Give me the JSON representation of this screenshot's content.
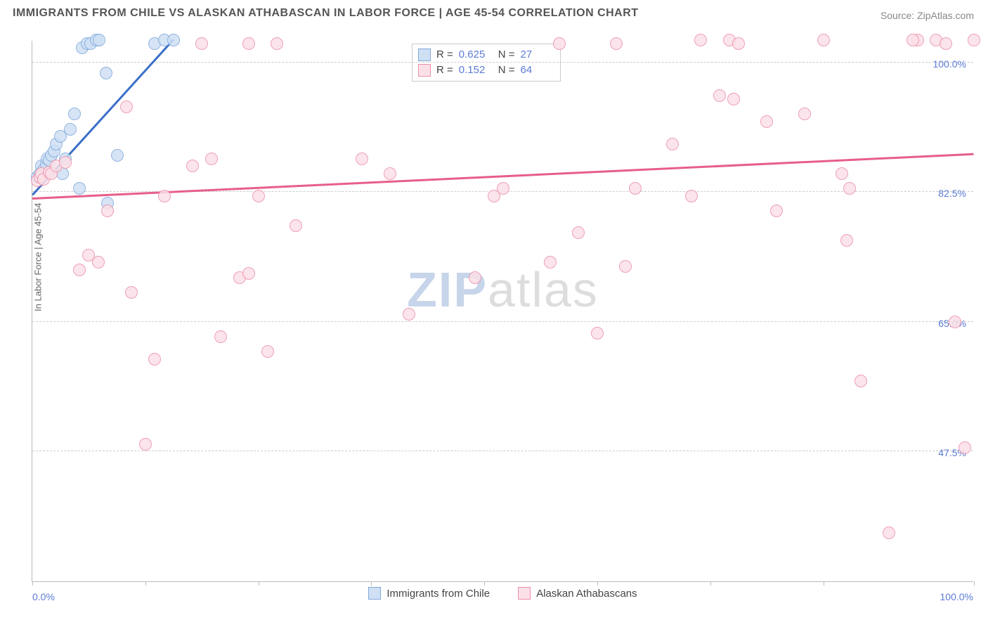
{
  "title": "IMMIGRANTS FROM CHILE VS ALASKAN ATHABASCAN IN LABOR FORCE | AGE 45-54 CORRELATION CHART",
  "source_label": "Source: ZipAtlas.com",
  "y_axis_label": "In Labor Force | Age 45-54",
  "watermark": {
    "zip": "ZIP",
    "atlas": "atlas",
    "zip_color": "#c7d5ea",
    "atlas_color": "#dddddd"
  },
  "plot": {
    "x_domain": [
      0,
      100
    ],
    "y_domain": [
      30,
      103
    ],
    "y_gridlines": [
      47.5,
      65.0,
      82.5,
      100.0
    ],
    "y_tick_labels": [
      "47.5%",
      "65.0%",
      "82.5%",
      "100.0%"
    ],
    "x_ticks": [
      0,
      12,
      24,
      36,
      48,
      60,
      72,
      84,
      100
    ],
    "x_tick_labels": {
      "left": "0.0%",
      "right": "100.0%"
    },
    "grid_color": "#cccccc",
    "axis_color": "#bbbbbb",
    "tick_label_color": "#5b7bd5"
  },
  "series": [
    {
      "name": "Immigrants from Chile",
      "short": "blue",
      "r": 0.625,
      "n": 27,
      "marker_fill": "#cfe0f5",
      "marker_stroke": "#7fa8d9",
      "marker_radius": 9,
      "line_color": "#3b6fc9",
      "trend": {
        "x1": 0,
        "y1": 82,
        "x2": 15,
        "y2": 103
      },
      "points": [
        [
          0.5,
          84.5
        ],
        [
          0.8,
          85
        ],
        [
          1.0,
          86
        ],
        [
          1.2,
          85.5
        ],
        [
          1.5,
          86.2
        ],
        [
          1.6,
          87
        ],
        [
          1.8,
          86.8
        ],
        [
          2.0,
          87.5
        ],
        [
          2.3,
          88
        ],
        [
          2.5,
          89
        ],
        [
          3.0,
          90
        ],
        [
          3.2,
          85
        ],
        [
          3.5,
          87
        ],
        [
          4.0,
          91
        ],
        [
          4.5,
          93
        ],
        [
          5.0,
          83
        ],
        [
          5.3,
          102
        ],
        [
          5.8,
          102.5
        ],
        [
          6.2,
          102.5
        ],
        [
          6.8,
          103
        ],
        [
          7.1,
          103
        ],
        [
          7.8,
          98.5
        ],
        [
          8.0,
          81
        ],
        [
          13.0,
          102.5
        ],
        [
          14.0,
          103
        ],
        [
          15.0,
          103
        ],
        [
          9.0,
          87.5
        ]
      ]
    },
    {
      "name": "Alaskan Athabascans",
      "short": "pink",
      "r": 0.152,
      "n": 64,
      "marker_fill": "#fbe0e8",
      "marker_stroke": "#ec8fa8",
      "marker_radius": 9,
      "line_color": "#e75e8a",
      "trend": {
        "x1": 0,
        "y1": 81.5,
        "x2": 100,
        "y2": 87.5
      },
      "points": [
        [
          0.5,
          84
        ],
        [
          0.8,
          84.5
        ],
        [
          1.0,
          85
        ],
        [
          1.2,
          84.2
        ],
        [
          1.8,
          85.2
        ],
        [
          2.0,
          85
        ],
        [
          2.5,
          86
        ],
        [
          3.5,
          86.5
        ],
        [
          5,
          72
        ],
        [
          6,
          74
        ],
        [
          7,
          73
        ],
        [
          8,
          80
        ],
        [
          10,
          94
        ],
        [
          12,
          48.5
        ],
        [
          14,
          82
        ],
        [
          13,
          60
        ],
        [
          10.5,
          69
        ],
        [
          17,
          86
        ],
        [
          19,
          87
        ],
        [
          18,
          102.5
        ],
        [
          23,
          102.5
        ],
        [
          20,
          63
        ],
        [
          22,
          71
        ],
        [
          23,
          71.5
        ],
        [
          24,
          82
        ],
        [
          26,
          102.5
        ],
        [
          28,
          78
        ],
        [
          25,
          61
        ],
        [
          35,
          87
        ],
        [
          38,
          85
        ],
        [
          40,
          66
        ],
        [
          47,
          71
        ],
        [
          49,
          82
        ],
        [
          50,
          83
        ],
        [
          55,
          73
        ],
        [
          56,
          102.5
        ],
        [
          58,
          77
        ],
        [
          60,
          63.5
        ],
        [
          62,
          102.5
        ],
        [
          63,
          72.5
        ],
        [
          68,
          89
        ],
        [
          70,
          82
        ],
        [
          71,
          103
        ],
        [
          74,
          103
        ],
        [
          75,
          102.5
        ],
        [
          73,
          95.5
        ],
        [
          74.5,
          95
        ],
        [
          78,
          92
        ],
        [
          79,
          80
        ],
        [
          82,
          93
        ],
        [
          86,
          85
        ],
        [
          86.5,
          76
        ],
        [
          86.8,
          83
        ],
        [
          88,
          57
        ],
        [
          91,
          36.5
        ],
        [
          94,
          103
        ],
        [
          93.5,
          103
        ],
        [
          96,
          103
        ],
        [
          98,
          65
        ],
        [
          97,
          102.5
        ],
        [
          99,
          48
        ],
        [
          100,
          103
        ],
        [
          84,
          103
        ],
        [
          64,
          83
        ]
      ]
    }
  ],
  "legend_labels": {
    "r": "R =",
    "n": "N ="
  }
}
